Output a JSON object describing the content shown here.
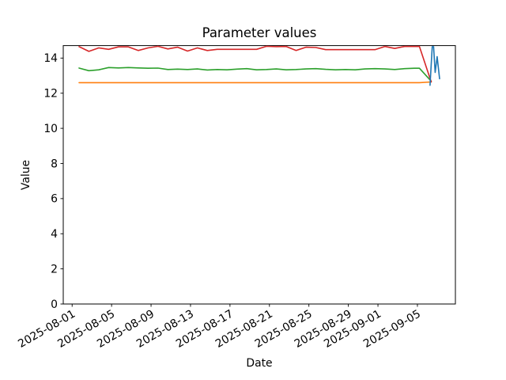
{
  "figure": {
    "title": "Parameter values"
  },
  "chart_data": {
    "type": "line",
    "title": "Parameter values",
    "xlabel": "Date",
    "ylabel": "Value",
    "x_start_date": "2025-08-01",
    "x_unit": "days since 2025-08-01",
    "xlim_days": [
      -0.9,
      38.85
    ],
    "ylim": [
      0,
      14.71
    ],
    "grid": false,
    "legend_position": "none",
    "x_ticks": [
      {
        "day": 0,
        "label": "2025-08-01"
      },
      {
        "day": 4,
        "label": "2025-08-05"
      },
      {
        "day": 8,
        "label": "2025-08-09"
      },
      {
        "day": 12,
        "label": "2025-08-13"
      },
      {
        "day": 16,
        "label": "2025-08-17"
      },
      {
        "day": 20,
        "label": "2025-08-21"
      },
      {
        "day": 24,
        "label": "2025-08-25"
      },
      {
        "day": 28,
        "label": "2025-08-29"
      },
      {
        "day": 31,
        "label": "2025-09-01"
      },
      {
        "day": 35,
        "label": "2025-09-05"
      }
    ],
    "y_ticks": [
      0,
      2,
      4,
      6,
      8,
      10,
      12,
      14
    ],
    "series": [
      {
        "name": "orange",
        "color": "#ff7f0e",
        "x_days": [
          0.7,
          1.7,
          2.7,
          3.7,
          4.7,
          5.7,
          6.7,
          7.7,
          8.7,
          9.7,
          10.7,
          11.7,
          12.7,
          13.7,
          14.7,
          15.7,
          16.7,
          17.7,
          18.7,
          19.7,
          20.7,
          21.7,
          22.7,
          23.7,
          24.7,
          25.7,
          26.7,
          27.7,
          28.7,
          29.7,
          30.7,
          31.7,
          32.7,
          33.7,
          34.7,
          35.2,
          36.4
        ],
        "values": [
          12.6,
          12.6,
          12.6,
          12.6,
          12.6,
          12.6,
          12.6,
          12.6,
          12.6,
          12.6,
          12.6,
          12.6,
          12.6,
          12.6,
          12.6,
          12.6,
          12.6,
          12.6,
          12.6,
          12.6,
          12.6,
          12.6,
          12.6,
          12.6,
          12.6,
          12.6,
          12.6,
          12.6,
          12.6,
          12.6,
          12.6,
          12.6,
          12.6,
          12.6,
          12.6,
          12.6,
          12.64
        ]
      },
      {
        "name": "green",
        "color": "#2ca02c",
        "x_days": [
          0.7,
          1.7,
          2.7,
          3.7,
          4.7,
          5.7,
          6.7,
          7.7,
          8.7,
          9.7,
          10.7,
          11.7,
          12.7,
          13.7,
          14.7,
          15.7,
          16.7,
          17.7,
          18.7,
          19.7,
          20.7,
          21.7,
          22.7,
          23.7,
          24.7,
          25.7,
          26.7,
          27.7,
          28.7,
          29.7,
          30.7,
          31.7,
          32.7,
          33.7,
          34.7,
          35.2,
          36.4
        ],
        "values": [
          13.43,
          13.28,
          13.33,
          13.46,
          13.44,
          13.46,
          13.44,
          13.42,
          13.43,
          13.35,
          13.37,
          13.35,
          13.38,
          13.32,
          13.35,
          13.33,
          13.37,
          13.4,
          13.33,
          13.35,
          13.38,
          13.33,
          13.35,
          13.38,
          13.4,
          13.36,
          13.33,
          13.35,
          13.33,
          13.38,
          13.4,
          13.38,
          13.35,
          13.4,
          13.42,
          13.42,
          12.68
        ]
      },
      {
        "name": "red",
        "color": "#d62728",
        "x_days": [
          0.7,
          1.7,
          2.7,
          3.7,
          4.7,
          5.7,
          6.7,
          7.7,
          8.7,
          9.7,
          10.7,
          11.7,
          12.7,
          13.7,
          14.7,
          15.7,
          16.7,
          17.7,
          18.7,
          19.7,
          20.7,
          21.7,
          22.7,
          23.7,
          24.7,
          25.7,
          26.7,
          27.7,
          28.7,
          29.7,
          30.7,
          31.7,
          32.7,
          33.7,
          34.7,
          35.2,
          36.4
        ],
        "values": [
          14.65,
          14.38,
          14.58,
          14.5,
          14.64,
          14.64,
          14.43,
          14.58,
          14.67,
          14.52,
          14.62,
          14.4,
          14.58,
          14.43,
          14.5,
          14.5,
          14.5,
          14.5,
          14.5,
          14.67,
          14.65,
          14.66,
          14.43,
          14.62,
          14.6,
          14.48,
          14.48,
          14.48,
          14.48,
          14.48,
          14.48,
          14.66,
          14.55,
          14.66,
          14.66,
          14.66,
          12.64
        ]
      },
      {
        "name": "blue",
        "color": "#1f77b4",
        "x_days": [
          36.28,
          36.5,
          36.64,
          36.8,
          37.0,
          37.25
        ],
        "values": [
          12.45,
          14.65,
          14.65,
          13.18,
          14.08,
          12.82
        ]
      }
    ]
  }
}
